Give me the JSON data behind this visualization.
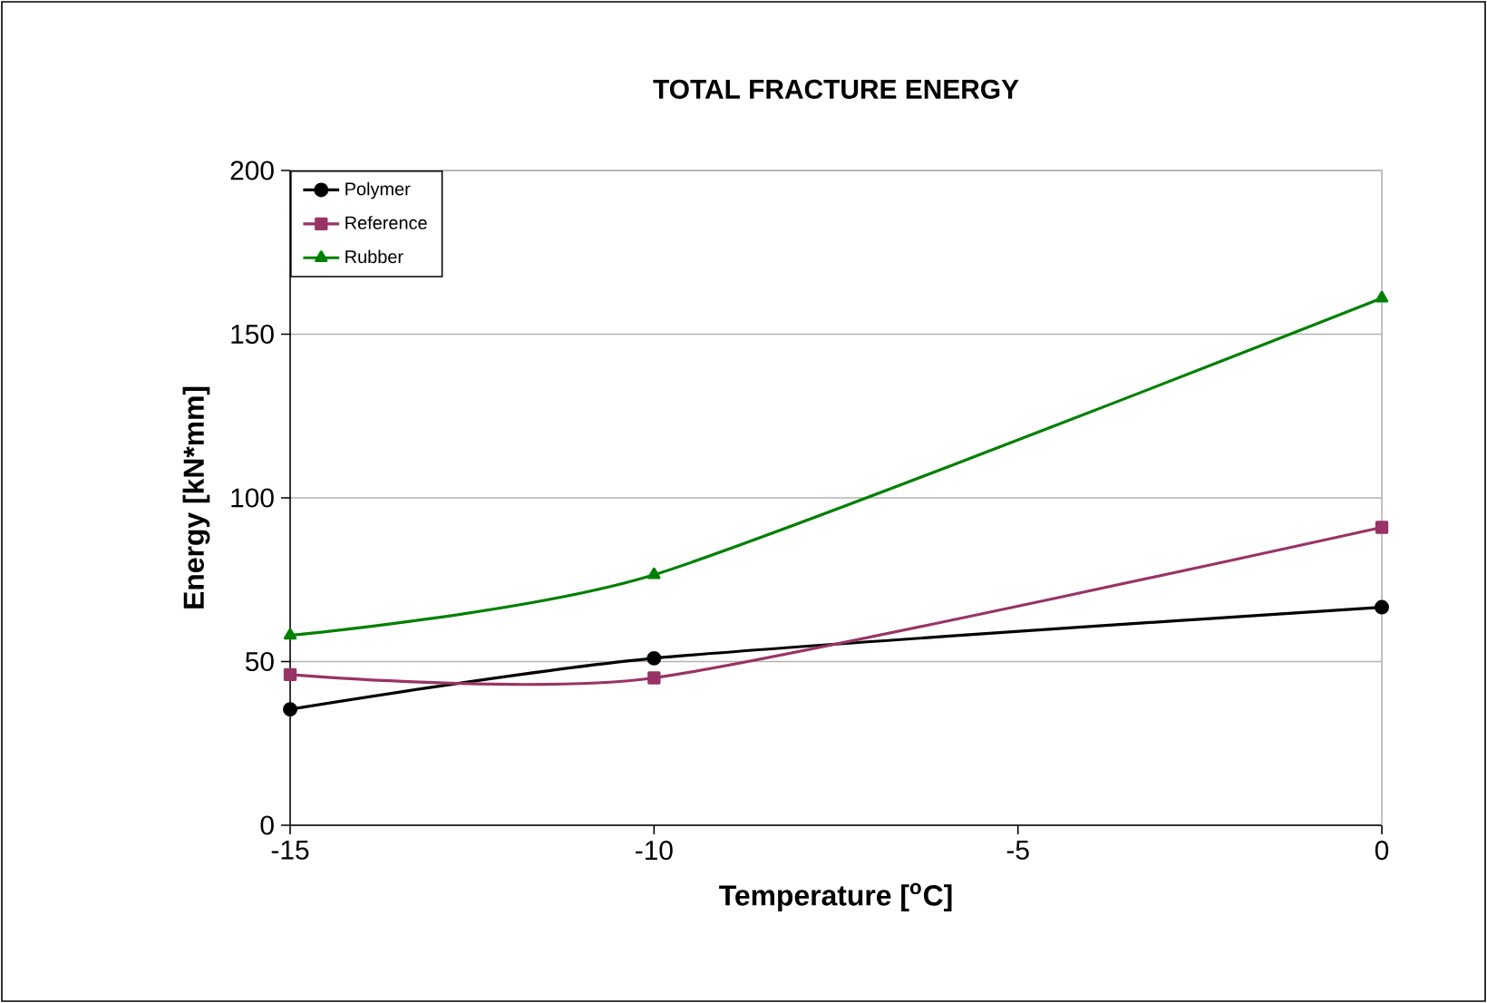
{
  "chart_data": {
    "type": "line",
    "title": "TOTAL FRACTURE ENERGY",
    "xlabel": "Temperature [$^{o}$C]",
    "ylabel": "Energy [kN*mm]",
    "x": [
      -15,
      -10,
      0
    ],
    "series": [
      {
        "name": "Polymer",
        "color": "#000000",
        "marker": "circle",
        "values": [
          35.4,
          51,
          66.6
        ]
      },
      {
        "name": "Reference",
        "color": "#993366",
        "marker": "square",
        "values": [
          46,
          45,
          91
        ]
      },
      {
        "name": "Rubber",
        "color": "#008000",
        "marker": "triangle",
        "values": [
          58,
          76.5,
          161
        ]
      }
    ],
    "xlim": [
      -15,
      0
    ],
    "xticks": [
      -15,
      -10,
      -5,
      0
    ],
    "ylim": [
      0,
      200
    ],
    "yticks": [
      0,
      50,
      100,
      150,
      200
    ],
    "grid": "y",
    "legend": "top left"
  }
}
